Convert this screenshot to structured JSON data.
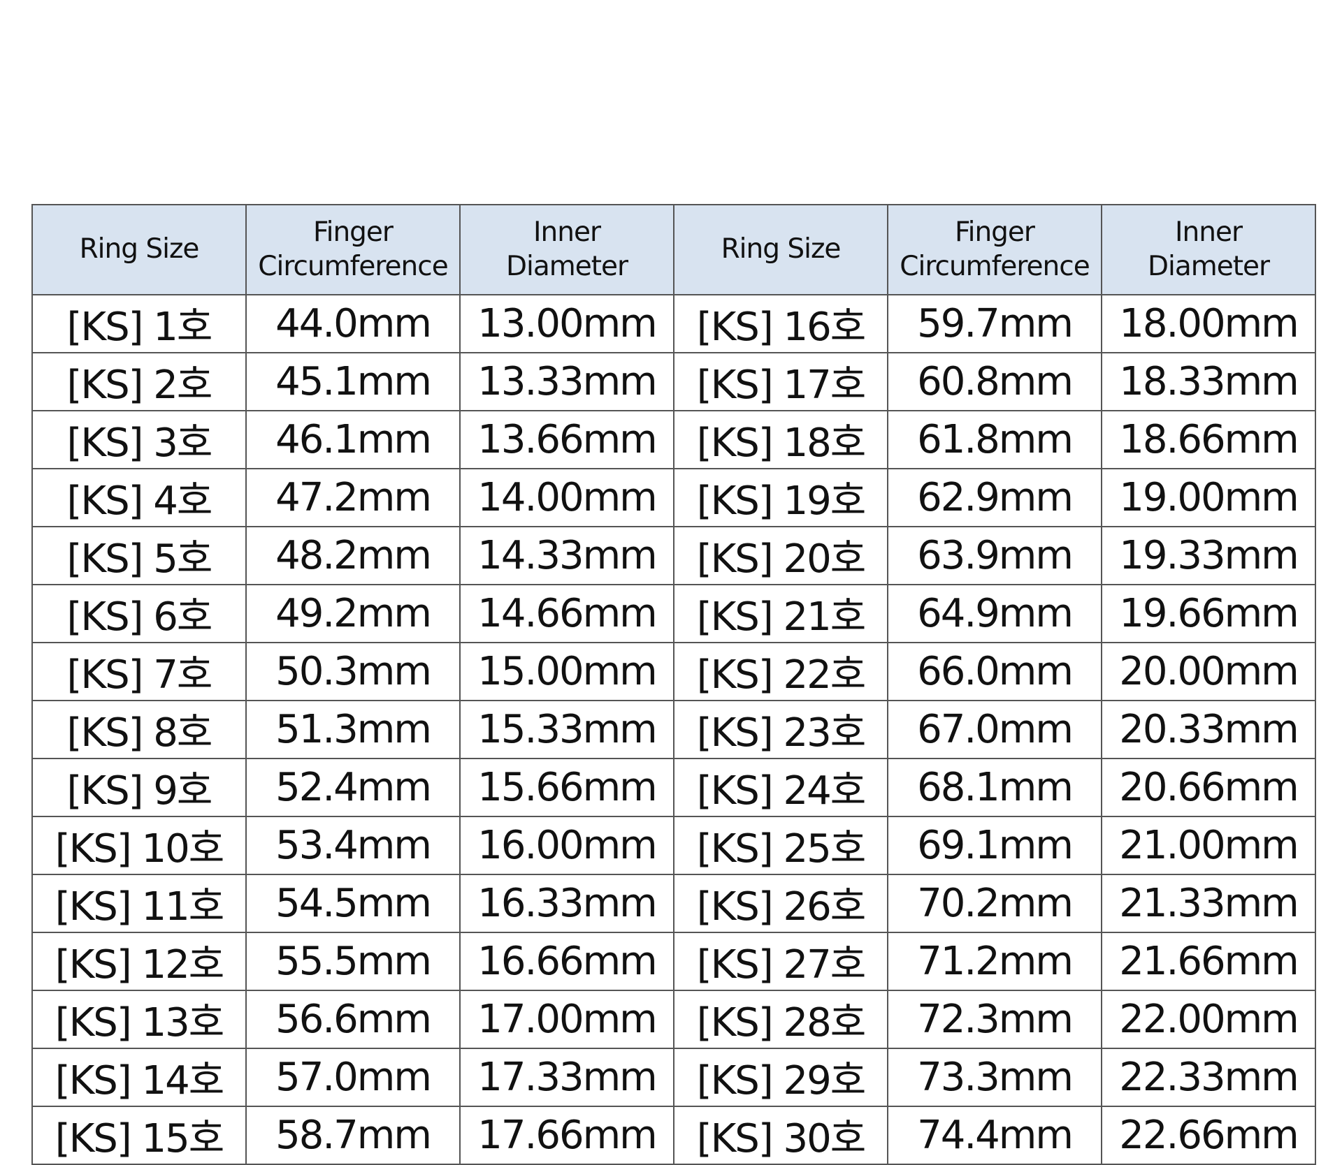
{
  "table": {
    "headers": [
      "Ring Size",
      "Finger\nCircumference",
      "Inner\nDiameter",
      "Ring Size",
      "Finger\nCircumference",
      "Inner\nDiameter"
    ],
    "rows": [
      [
        "[KS] 1호",
        "44.0mm",
        "13.00mm",
        "[KS] 16호",
        "59.7mm",
        "18.00mm"
      ],
      [
        "[KS] 2호",
        "45.1mm",
        "13.33mm",
        "[KS] 17호",
        "60.8mm",
        "18.33mm"
      ],
      [
        "[KS] 3호",
        "46.1mm",
        "13.66mm",
        "[KS] 18호",
        "61.8mm",
        "18.66mm"
      ],
      [
        "[KS] 4호",
        "47.2mm",
        "14.00mm",
        "[KS] 19호",
        "62.9mm",
        "19.00mm"
      ],
      [
        "[KS] 5호",
        "48.2mm",
        "14.33mm",
        "[KS] 20호",
        "63.9mm",
        "19.33mm"
      ],
      [
        "[KS] 6호",
        "49.2mm",
        "14.66mm",
        "[KS] 21호",
        "64.9mm",
        "19.66mm"
      ],
      [
        "[KS] 7호",
        "50.3mm",
        "15.00mm",
        "[KS] 22호",
        "66.0mm",
        "20.00mm"
      ],
      [
        "[KS] 8호",
        "51.3mm",
        "15.33mm",
        "[KS] 23호",
        "67.0mm",
        "20.33mm"
      ],
      [
        "[KS] 9호",
        "52.4mm",
        "15.66mm",
        "[KS] 24호",
        "68.1mm",
        "20.66mm"
      ],
      [
        "[KS] 10호",
        "53.4mm",
        "16.00mm",
        "[KS] 25호",
        "69.1mm",
        "21.00mm"
      ],
      [
        "[KS] 11호",
        "54.5mm",
        "16.33mm",
        "[KS] 26호",
        "70.2mm",
        "21.33mm"
      ],
      [
        "[KS] 12호",
        "55.5mm",
        "16.66mm",
        "[KS] 27호",
        "71.2mm",
        "21.66mm"
      ],
      [
        "[KS] 13호",
        "56.6mm",
        "17.00mm",
        "[KS] 28호",
        "72.3mm",
        "22.00mm"
      ],
      [
        "[KS] 14호",
        "57.0mm",
        "17.33mm",
        "[KS] 29호",
        "73.3mm",
        "22.33mm"
      ],
      [
        "[KS] 15호",
        "58.7mm",
        "17.66mm",
        "[KS] 30호",
        "74.4mm",
        "22.66mm"
      ]
    ]
  },
  "colors": {
    "header_bg": "#d8e3f0",
    "border": "#555555"
  }
}
